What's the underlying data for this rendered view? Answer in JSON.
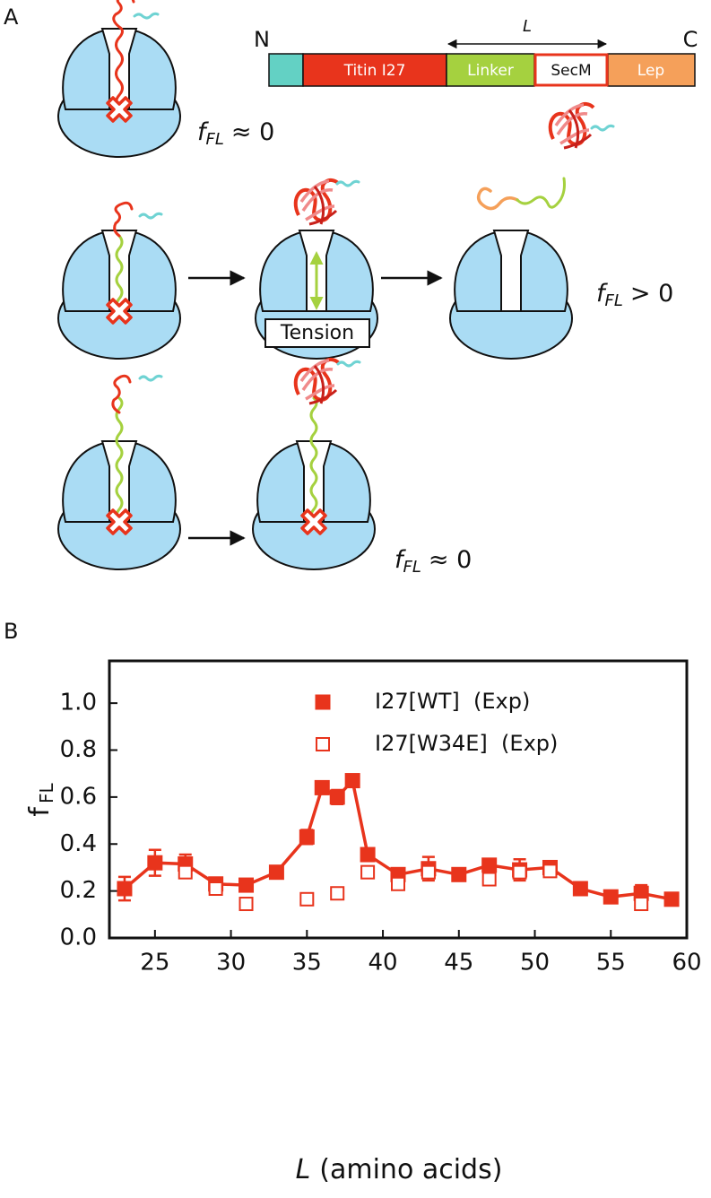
{
  "panel_a": {
    "label": "A",
    "construct": {
      "n_terminus": "N",
      "c_terminus": "C",
      "length_label": "L",
      "segments": [
        "Titin I27",
        "Linker",
        "SecM",
        "Lep"
      ]
    },
    "outcomes": [
      {
        "symbol": "f",
        "subscript": "FL",
        "relation": "≈ 0"
      },
      {
        "symbol": "f",
        "subscript": "FL",
        "relation": "> 0"
      },
      {
        "symbol": "f",
        "subscript": "FL",
        "relation": "≈ 0"
      }
    ],
    "tension_label": "Tension"
  },
  "panel_b": {
    "label": "B"
  },
  "chart_data": {
    "type": "scatter",
    "x_label": {
      "symbol": "L",
      "text": "(amino acids)"
    },
    "y_label": {
      "symbol": "f",
      "subscript": "FL"
    },
    "xlim": [
      22,
      60
    ],
    "xticks": [
      25,
      30,
      35,
      40,
      45,
      50,
      55,
      60
    ],
    "ylim": [
      0,
      1.18
    ],
    "yticks": [
      {
        "value": 0,
        "label": "0.0"
      },
      0.2,
      0.4,
      0.6,
      0.8,
      {
        "value": 1,
        "label": "1.0"
      }
    ],
    "series": [
      {
        "name": "I27[WT]  (Exp)",
        "color": "#e8341c",
        "marker": "filled",
        "line": true,
        "x": [
          23,
          25,
          27,
          29,
          31,
          33,
          35,
          36,
          37,
          38,
          39,
          41,
          43,
          45,
          47,
          49,
          51,
          53,
          55,
          57,
          59
        ],
        "values": [
          0.21,
          0.32,
          0.315,
          0.23,
          0.225,
          0.28,
          0.43,
          0.64,
          0.6,
          0.67,
          0.355,
          0.27,
          0.295,
          0.27,
          0.31,
          0.29,
          0.3,
          0.21,
          0.175,
          0.19,
          0.165
        ],
        "errors": [
          0.05,
          0.055,
          0.04,
          null,
          null,
          null,
          0.03,
          null,
          0.03,
          null,
          null,
          null,
          0.05,
          null,
          null,
          0.045,
          null,
          null,
          null,
          0.035,
          null
        ]
      },
      {
        "name": "I27[W34E]  (Exp)",
        "color": "#e8341c",
        "marker": "open",
        "line": false,
        "x": [
          27,
          29,
          31,
          35,
          37,
          39,
          41,
          43,
          47,
          49,
          51,
          57
        ],
        "values": [
          0.28,
          0.21,
          0.145,
          0.165,
          0.19,
          0.28,
          0.23,
          0.28,
          0.25,
          0.28,
          0.285,
          0.145
        ]
      }
    ]
  }
}
